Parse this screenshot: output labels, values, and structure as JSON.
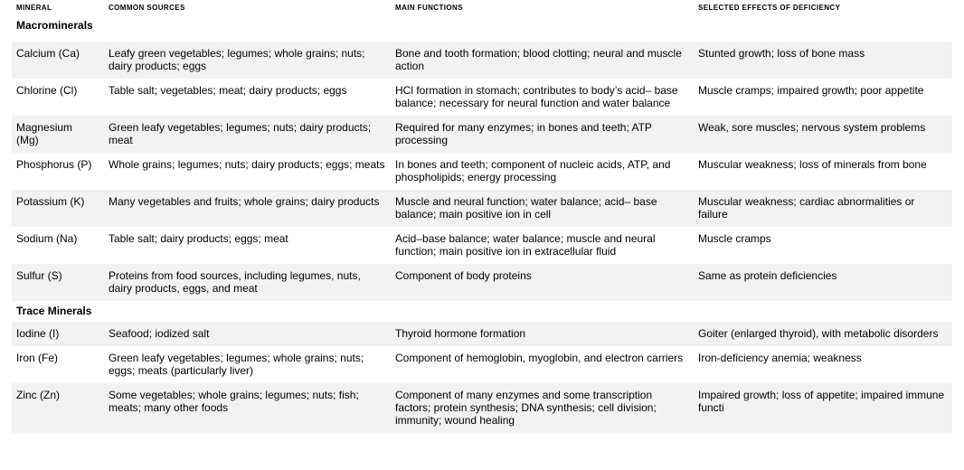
{
  "table": {
    "colors": {
      "row_shade": "#f2f2f2",
      "text": "#000000",
      "background": "#ffffff"
    },
    "columns": [
      {
        "label": "MINERAL"
      },
      {
        "label": "COMMON SOURCES"
      },
      {
        "label": "MAIN FUNCTIONS"
      },
      {
        "label": "SELECTED EFFECTS OF DEFICIENCY"
      }
    ],
    "sections": [
      {
        "title": "Macrominerals",
        "rows": [
          {
            "mineral": "Calcium (Ca)",
            "sources": "Leafy green vegetables; legumes; whole grains; nuts; dairy products; eggs",
            "functions": "Bone and tooth formation; blood clotting; neural and muscle action",
            "deficiency": "Stunted growth; loss of bone mass"
          },
          {
            "mineral": "Chlorine (Cl)",
            "sources": "Table salt; vegetables; meat; dairy products; eggs",
            "functions": "HCl formation in stomach; contributes to body’s acid– base balance; necessary for neural function and water balance",
            "deficiency": "Muscle cramps; impaired growth; poor appetite"
          },
          {
            "mineral": "Magnesium\n(Mg)",
            "sources": "Green leafy vegetables; legumes; nuts; dairy products; meat",
            "functions": "Required for many enzymes; in bones and teeth; ATP processing",
            "deficiency": "Weak, sore muscles; nervous system problems"
          },
          {
            "mineral": "Phosphorus (P)",
            "sources": "Whole grains; legumes; nuts; dairy products; eggs; meats",
            "functions": "In bones and teeth; component of nucleic acids, ATP, and phospholipids; energy processing",
            "deficiency": "Muscular weakness; loss of minerals from bone"
          },
          {
            "mineral": "Potassium (K)",
            "sources": "Many vegetables and fruits; whole grains; dairy products",
            "functions": "Muscle and neural function; water balance; acid– base balance; main positive ion in cell",
            "deficiency": "Muscular weakness; cardiac abnormalities or failure"
          },
          {
            "mineral": "Sodium (Na)",
            "sources": "Table salt; dairy products; eggs; meat",
            "functions": "Acid–base balance; water balance; muscle and neural function; main positive ion in extracellular fluid",
            "deficiency": "Muscle cramps"
          },
          {
            "mineral": "Sulfur (S)",
            "sources": "Proteins from food sources, including legumes, nuts, dairy products, eggs, and meat",
            "functions": "Component of body proteins",
            "deficiency": "Same as protein deficiencies"
          }
        ]
      },
      {
        "title": "Trace Minerals",
        "rows": [
          {
            "mineral": "Iodine (I)",
            "sources": "Seafood; iodized salt",
            "functions": "Thyroid hormone formation",
            "deficiency": "Goiter (enlarged thyroid), with metabolic disorders"
          },
          {
            "mineral": "Iron (Fe)",
            "sources": "Green leafy vegetables; legumes; whole grains; nuts; eggs; meats (particularly liver)",
            "functions": "Component of hemoglobin, myoglobin, and electron carriers",
            "deficiency": "Iron-deficiency anemia; weakness"
          },
          {
            "mineral": "Zinc (Zn)",
            "sources": "Some vegetables; whole grains; legumes; nuts; fish; meats; many other foods",
            "functions": "Component of many enzymes and some transcription factors; protein synthesis; DNA synthesis; cell division; immunity; wound healing",
            "deficiency": "Impaired growth; loss of appetite; impaired immune functi"
          }
        ]
      }
    ]
  }
}
